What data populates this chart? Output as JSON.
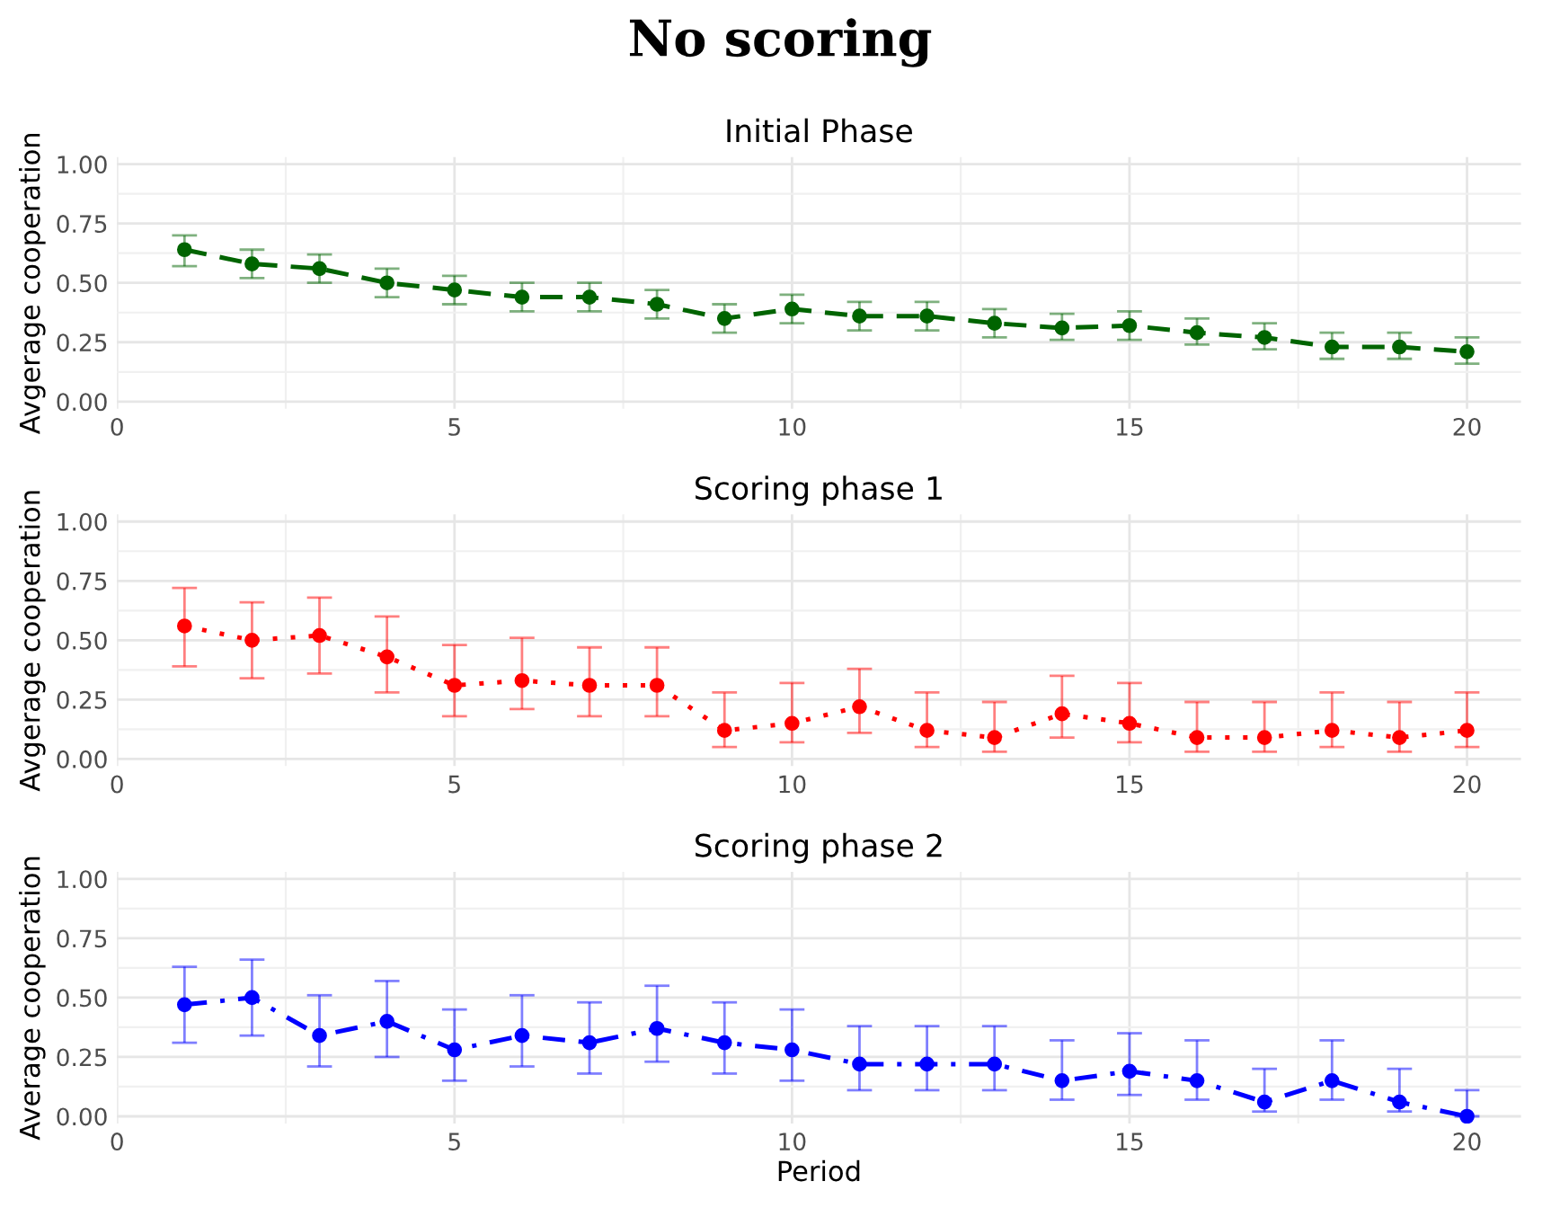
{
  "chart_data": [
    {
      "type": "line",
      "title": "Initial Phase",
      "ylabel": "Avgerage cooperation",
      "x": [
        1,
        2,
        3,
        4,
        5,
        6,
        7,
        8,
        9,
        10,
        11,
        12,
        13,
        14,
        15,
        16,
        17,
        18,
        19,
        20
      ],
      "series": [
        {
          "color": "#006400",
          "values": [
            0.64,
            0.58,
            0.56,
            0.5,
            0.47,
            0.44,
            0.44,
            0.41,
            0.35,
            0.39,
            0.36,
            0.36,
            0.33,
            0.31,
            0.32,
            0.29,
            0.27,
            0.23,
            0.23,
            0.21
          ],
          "errors": [
            [
              0.57,
              0.7
            ],
            [
              0.52,
              0.64
            ],
            [
              0.5,
              0.62
            ],
            [
              0.44,
              0.56
            ],
            [
              0.41,
              0.53
            ],
            [
              0.38,
              0.5
            ],
            [
              0.38,
              0.5
            ],
            [
              0.35,
              0.47
            ],
            [
              0.29,
              0.41
            ],
            [
              0.33,
              0.45
            ],
            [
              0.3,
              0.42
            ],
            [
              0.3,
              0.42
            ],
            [
              0.27,
              0.39
            ],
            [
              0.26,
              0.37
            ],
            [
              0.26,
              0.38
            ],
            [
              0.24,
              0.35
            ],
            [
              0.22,
              0.33
            ],
            [
              0.18,
              0.29
            ],
            [
              0.18,
              0.29
            ],
            [
              0.16,
              0.27
            ]
          ]
        }
      ],
      "marker": "circle",
      "line_style": "dashed",
      "xlim": [
        0,
        20.8
      ],
      "xticks": [
        0,
        5,
        10,
        15,
        20
      ],
      "ylim": [
        -0.03,
        1.03
      ],
      "yticks": [
        {
          "value": 0,
          "label": "0.00"
        },
        {
          "value": 0.25,
          "label": "0.25"
        },
        {
          "value": 0.5,
          "label": "0.50"
        },
        {
          "value": 0.75,
          "label": "0.75"
        },
        {
          "value": 1,
          "label": "1.00"
        }
      ],
      "grid": true,
      "annotations": [
        "No scoring"
      ]
    },
    {
      "type": "line",
      "title": "Scoring phase 1",
      "ylabel": "Avgerage cooperation",
      "x": [
        1,
        2,
        3,
        4,
        5,
        6,
        7,
        8,
        9,
        10,
        11,
        12,
        13,
        14,
        15,
        16,
        17,
        18,
        19,
        20
      ],
      "series": [
        {
          "color": "#ff0000",
          "values": [
            0.56,
            0.5,
            0.52,
            0.43,
            0.31,
            0.33,
            0.31,
            0.31,
            0.12,
            0.15,
            0.22,
            0.12,
            0.09,
            0.19,
            0.15,
            0.09,
            0.09,
            0.12,
            0.09,
            0.12
          ],
          "errors": [
            [
              0.39,
              0.72
            ],
            [
              0.34,
              0.66
            ],
            [
              0.36,
              0.68
            ],
            [
              0.28,
              0.6
            ],
            [
              0.18,
              0.48
            ],
            [
              0.21,
              0.51
            ],
            [
              0.18,
              0.47
            ],
            [
              0.18,
              0.47
            ],
            [
              0.05,
              0.28
            ],
            [
              0.07,
              0.32
            ],
            [
              0.11,
              0.38
            ],
            [
              0.05,
              0.28
            ],
            [
              0.03,
              0.24
            ],
            [
              0.09,
              0.35
            ],
            [
              0.07,
              0.32
            ],
            [
              0.03,
              0.24
            ],
            [
              0.03,
              0.24
            ],
            [
              0.05,
              0.28
            ],
            [
              0.03,
              0.24
            ],
            [
              0.05,
              0.28
            ]
          ]
        }
      ],
      "marker": "circle",
      "line_style": "dotted",
      "xlim": [
        0,
        20.8
      ],
      "xticks": [
        0,
        5,
        10,
        15,
        20
      ],
      "ylim": [
        -0.03,
        1.03
      ],
      "yticks": [
        {
          "value": 0,
          "label": "0.00"
        },
        {
          "value": 0.25,
          "label": "0.25"
        },
        {
          "value": 0.5,
          "label": "0.50"
        },
        {
          "value": 0.75,
          "label": "0.75"
        },
        {
          "value": 1,
          "label": "1.00"
        }
      ],
      "grid": true
    },
    {
      "type": "line",
      "title": "Scoring phase 2",
      "ylabel": "Average cooperation",
      "xlabel": "Period",
      "x": [
        1,
        2,
        3,
        4,
        5,
        6,
        7,
        8,
        9,
        10,
        11,
        12,
        13,
        14,
        15,
        16,
        17,
        18,
        19,
        20
      ],
      "series": [
        {
          "color": "#0000ff",
          "values": [
            0.47,
            0.5,
            0.34,
            0.4,
            0.28,
            0.34,
            0.31,
            0.37,
            0.31,
            0.28,
            0.22,
            0.22,
            0.22,
            0.15,
            0.19,
            0.15,
            0.06,
            0.15,
            0.06,
            0.0
          ],
          "errors": [
            [
              0.31,
              0.63
            ],
            [
              0.34,
              0.66
            ],
            [
              0.21,
              0.51
            ],
            [
              0.25,
              0.57
            ],
            [
              0.15,
              0.45
            ],
            [
              0.21,
              0.51
            ],
            [
              0.18,
              0.48
            ],
            [
              0.23,
              0.55
            ],
            [
              0.18,
              0.48
            ],
            [
              0.15,
              0.45
            ],
            [
              0.11,
              0.38
            ],
            [
              0.11,
              0.38
            ],
            [
              0.11,
              0.38
            ],
            [
              0.07,
              0.32
            ],
            [
              0.09,
              0.35
            ],
            [
              0.07,
              0.32
            ],
            [
              0.02,
              0.2
            ],
            [
              0.07,
              0.32
            ],
            [
              0.02,
              0.2
            ],
            [
              0.0,
              0.11
            ]
          ]
        }
      ],
      "marker": "circle",
      "line_style": "dashdot",
      "xlim": [
        0,
        20.8
      ],
      "xticks": [
        0,
        5,
        10,
        15,
        20
      ],
      "ylim": [
        -0.03,
        1.03
      ],
      "yticks": [
        {
          "value": 0,
          "label": "0.00"
        },
        {
          "value": 0.25,
          "label": "0.25"
        },
        {
          "value": 0.5,
          "label": "0.50"
        },
        {
          "value": 0.75,
          "label": "0.75"
        },
        {
          "value": 1,
          "label": "1.00"
        }
      ],
      "grid": true
    }
  ]
}
